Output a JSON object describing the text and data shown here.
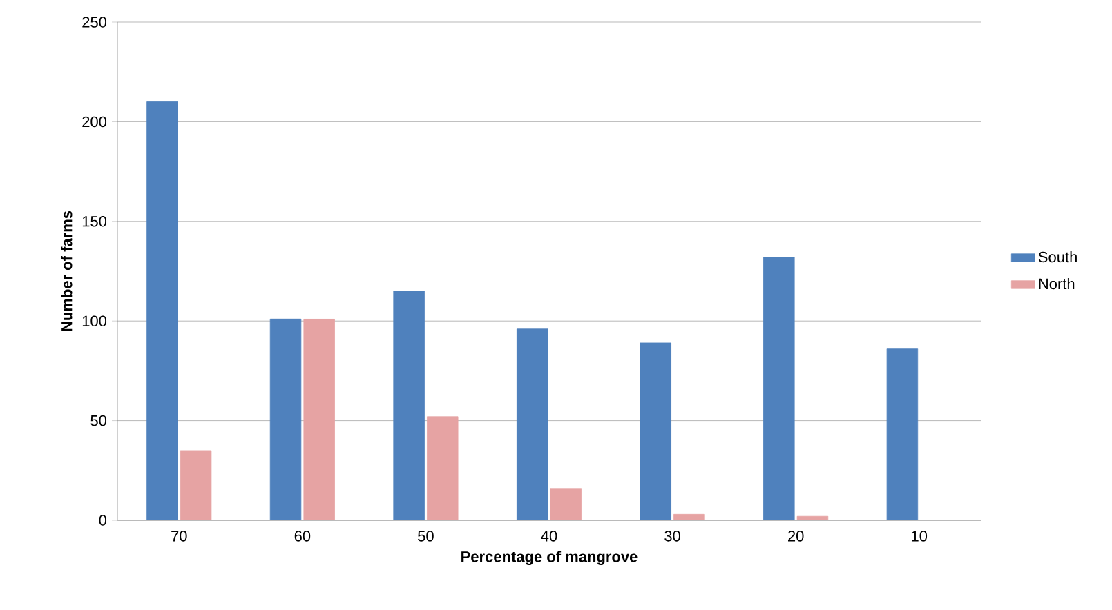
{
  "chart_data": {
    "type": "bar",
    "xlabel": "Percentage of mangrove",
    "ylabel": "Number of farms",
    "categories": [
      "70",
      "60",
      "50",
      "40",
      "30",
      "20",
      "10"
    ],
    "series": [
      {
        "name": "South",
        "color": "#4f81bd",
        "values": [
          210,
          101,
          115,
          96,
          89,
          132,
          86
        ]
      },
      {
        "name": "North",
        "color": "#e6a3a3",
        "values": [
          35,
          101,
          52,
          16,
          3,
          2,
          0
        ]
      }
    ],
    "ylim": [
      0,
      250
    ],
    "yticks": [
      0,
      50,
      100,
      150,
      200,
      250
    ],
    "grid": "y",
    "legend": "right"
  }
}
